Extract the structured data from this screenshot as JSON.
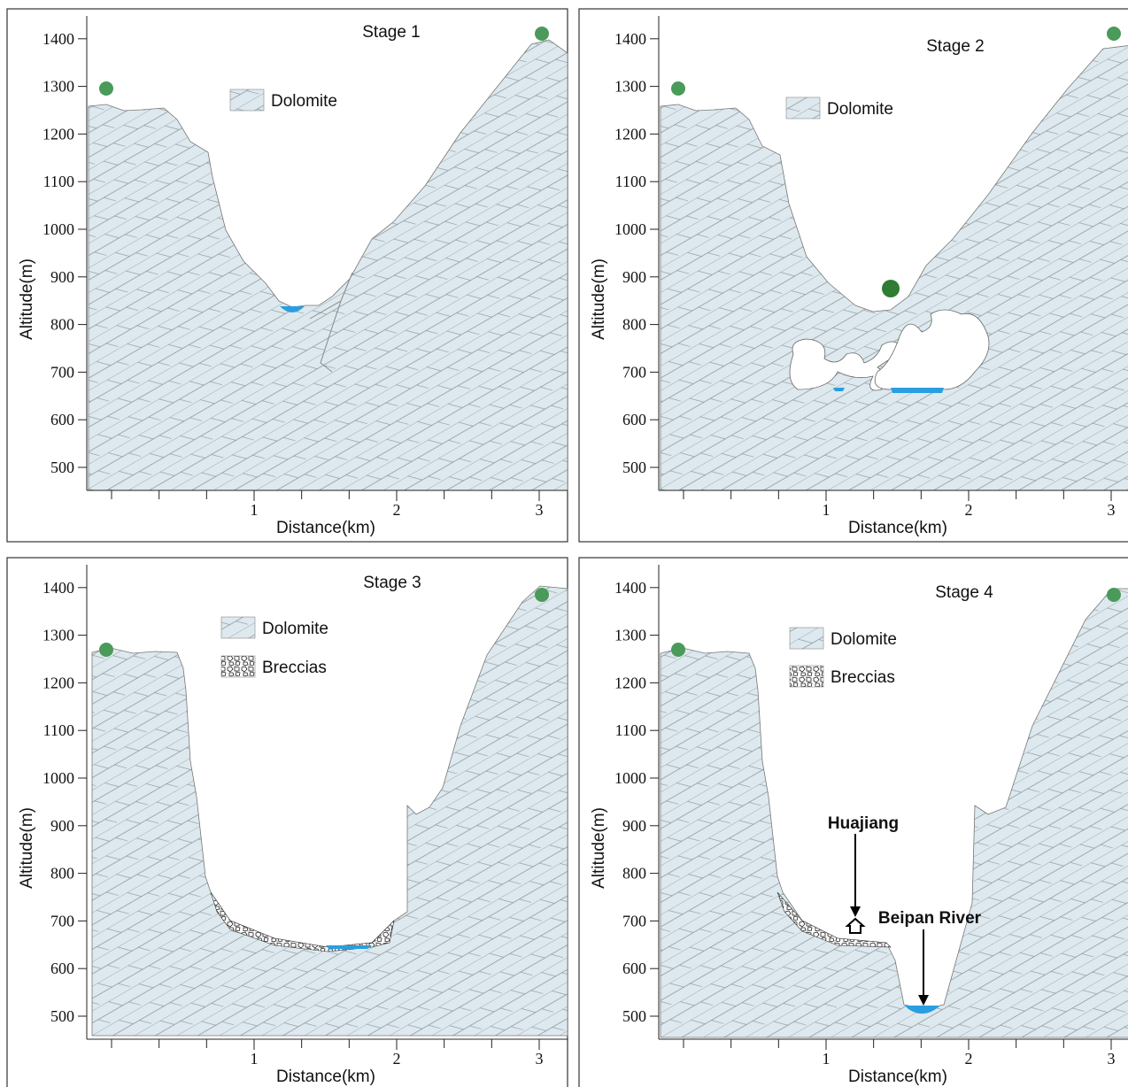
{
  "panels": [
    {
      "title": "Stage 1",
      "y_axis_label": "Altitude(m)",
      "x_axis_label": "Distance(km)",
      "yticks": [
        500,
        600,
        700,
        800,
        900,
        1000,
        1100,
        1200,
        1300,
        1400
      ],
      "xticks": [
        1,
        2,
        3
      ],
      "legend": [
        "Dolomite"
      ]
    },
    {
      "title": "Stage 2",
      "y_axis_label": "Altitude(m)",
      "x_axis_label": "Distance(km)",
      "yticks": [
        500,
        600,
        700,
        800,
        900,
        1000,
        1100,
        1200,
        1300,
        1400
      ],
      "xticks": [
        1,
        2,
        3
      ],
      "legend": [
        "Dolomite"
      ]
    },
    {
      "title": "Stage 3",
      "y_axis_label": "Altitude(m)",
      "x_axis_label": "Distance(km)",
      "yticks": [
        500,
        600,
        700,
        800,
        900,
        1000,
        1100,
        1200,
        1300,
        1400
      ],
      "xticks": [
        1,
        2,
        3
      ],
      "legend": [
        "Dolomite",
        "Breccias"
      ]
    },
    {
      "title": "Stage 4",
      "y_axis_label": "Altitude(m)",
      "x_axis_label": "Distance(km)",
      "yticks": [
        500,
        600,
        700,
        800,
        900,
        1000,
        1100,
        1200,
        1300,
        1400
      ],
      "xticks": [
        1,
        2,
        3
      ],
      "legend": [
        "Dolomite",
        "Breccias"
      ],
      "annotations": [
        "Huajiang",
        "Beipan River"
      ]
    }
  ]
}
